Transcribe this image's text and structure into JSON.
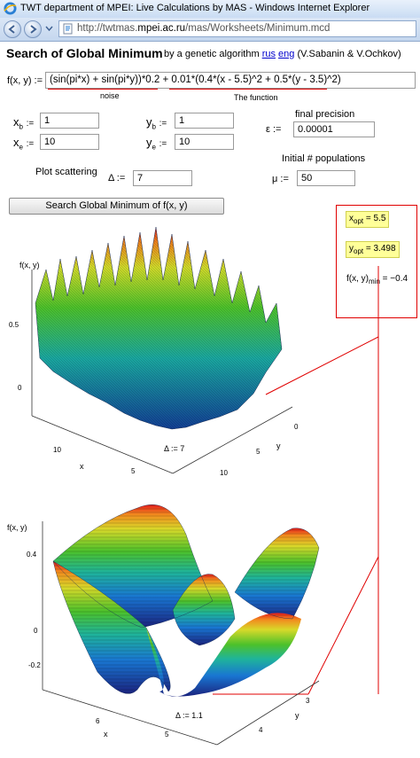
{
  "window": {
    "title": "TWT department of MPEI: Live Calculations by MAS - Windows Internet Explorer"
  },
  "address": {
    "prefix": "http://twtmas.",
    "host": "mpei.ac.ru",
    "path": "/mas/Worksheets/Minimum.mcd"
  },
  "header": {
    "title": "Search of Global Minimum",
    "subtitle": "by a genetic algorithm",
    "link_rus": "rus",
    "link_eng": "eng",
    "authors": "(V.Sabanin & V.Ochkov)"
  },
  "function": {
    "label": "f(x, y) :=",
    "expression": "(sin(pi*x) + sin(pi*y))*0.2 + 0.01*(0.4*(x - 5.5)^2 + 0.5*(y - 3.5)^2)",
    "noise_label": "noise",
    "function_label": "The function"
  },
  "inputs": {
    "xb": {
      "name": "x",
      "sub": "b",
      "value": "1"
    },
    "xe": {
      "name": "x",
      "sub": "e",
      "value": "10"
    },
    "yb": {
      "name": "y",
      "sub": "b",
      "value": "1"
    },
    "ye": {
      "name": "y",
      "sub": "e",
      "value": "10"
    },
    "eps": {
      "symbol": "ε :=",
      "label": "final precision",
      "value": "0.00001"
    },
    "mu": {
      "symbol": "μ :=",
      "label": "Initial # populations",
      "value": "50"
    },
    "delta": {
      "label": "Plot scattering",
      "symbol": "Δ :=",
      "value": "7"
    },
    "assign": ":="
  },
  "search_button": "Search Global Minimum of f(x, y)",
  "results": {
    "x_opt": {
      "name": "x",
      "sub": "opt",
      "value": "= 5.5"
    },
    "y_opt": {
      "name": "y",
      "sub": "opt",
      "value": "= 3.498"
    },
    "f_min": {
      "name": "f(x, y)",
      "sub": "min",
      "value": "= −0.4"
    }
  },
  "plot1": {
    "zlabel": "f(x, y)",
    "ztick_mid": "0.5",
    "ztick_low": "0",
    "xlabel": "x",
    "ylabel": "y",
    "xtick_10": "10",
    "xtick_5": "5",
    "ytick_0": "0",
    "ytick_5": "5",
    "ytick_10": "10",
    "delta_label": "Δ := 7"
  },
  "plot2": {
    "zlabel": "f(x, y)",
    "ztick_04": "0.4",
    "ztick_0": "0",
    "ztick_m02": "-0.2",
    "xlabel": "x",
    "ylabel": "y",
    "xtick_6": "6",
    "xtick_5": "5",
    "ytick_3": "3",
    "ytick_4": "4",
    "delta_label": "Δ := 1.1"
  },
  "colors": {
    "accent_red": "#e00000",
    "link": "#0000cc",
    "highlight": "#ffff99"
  }
}
